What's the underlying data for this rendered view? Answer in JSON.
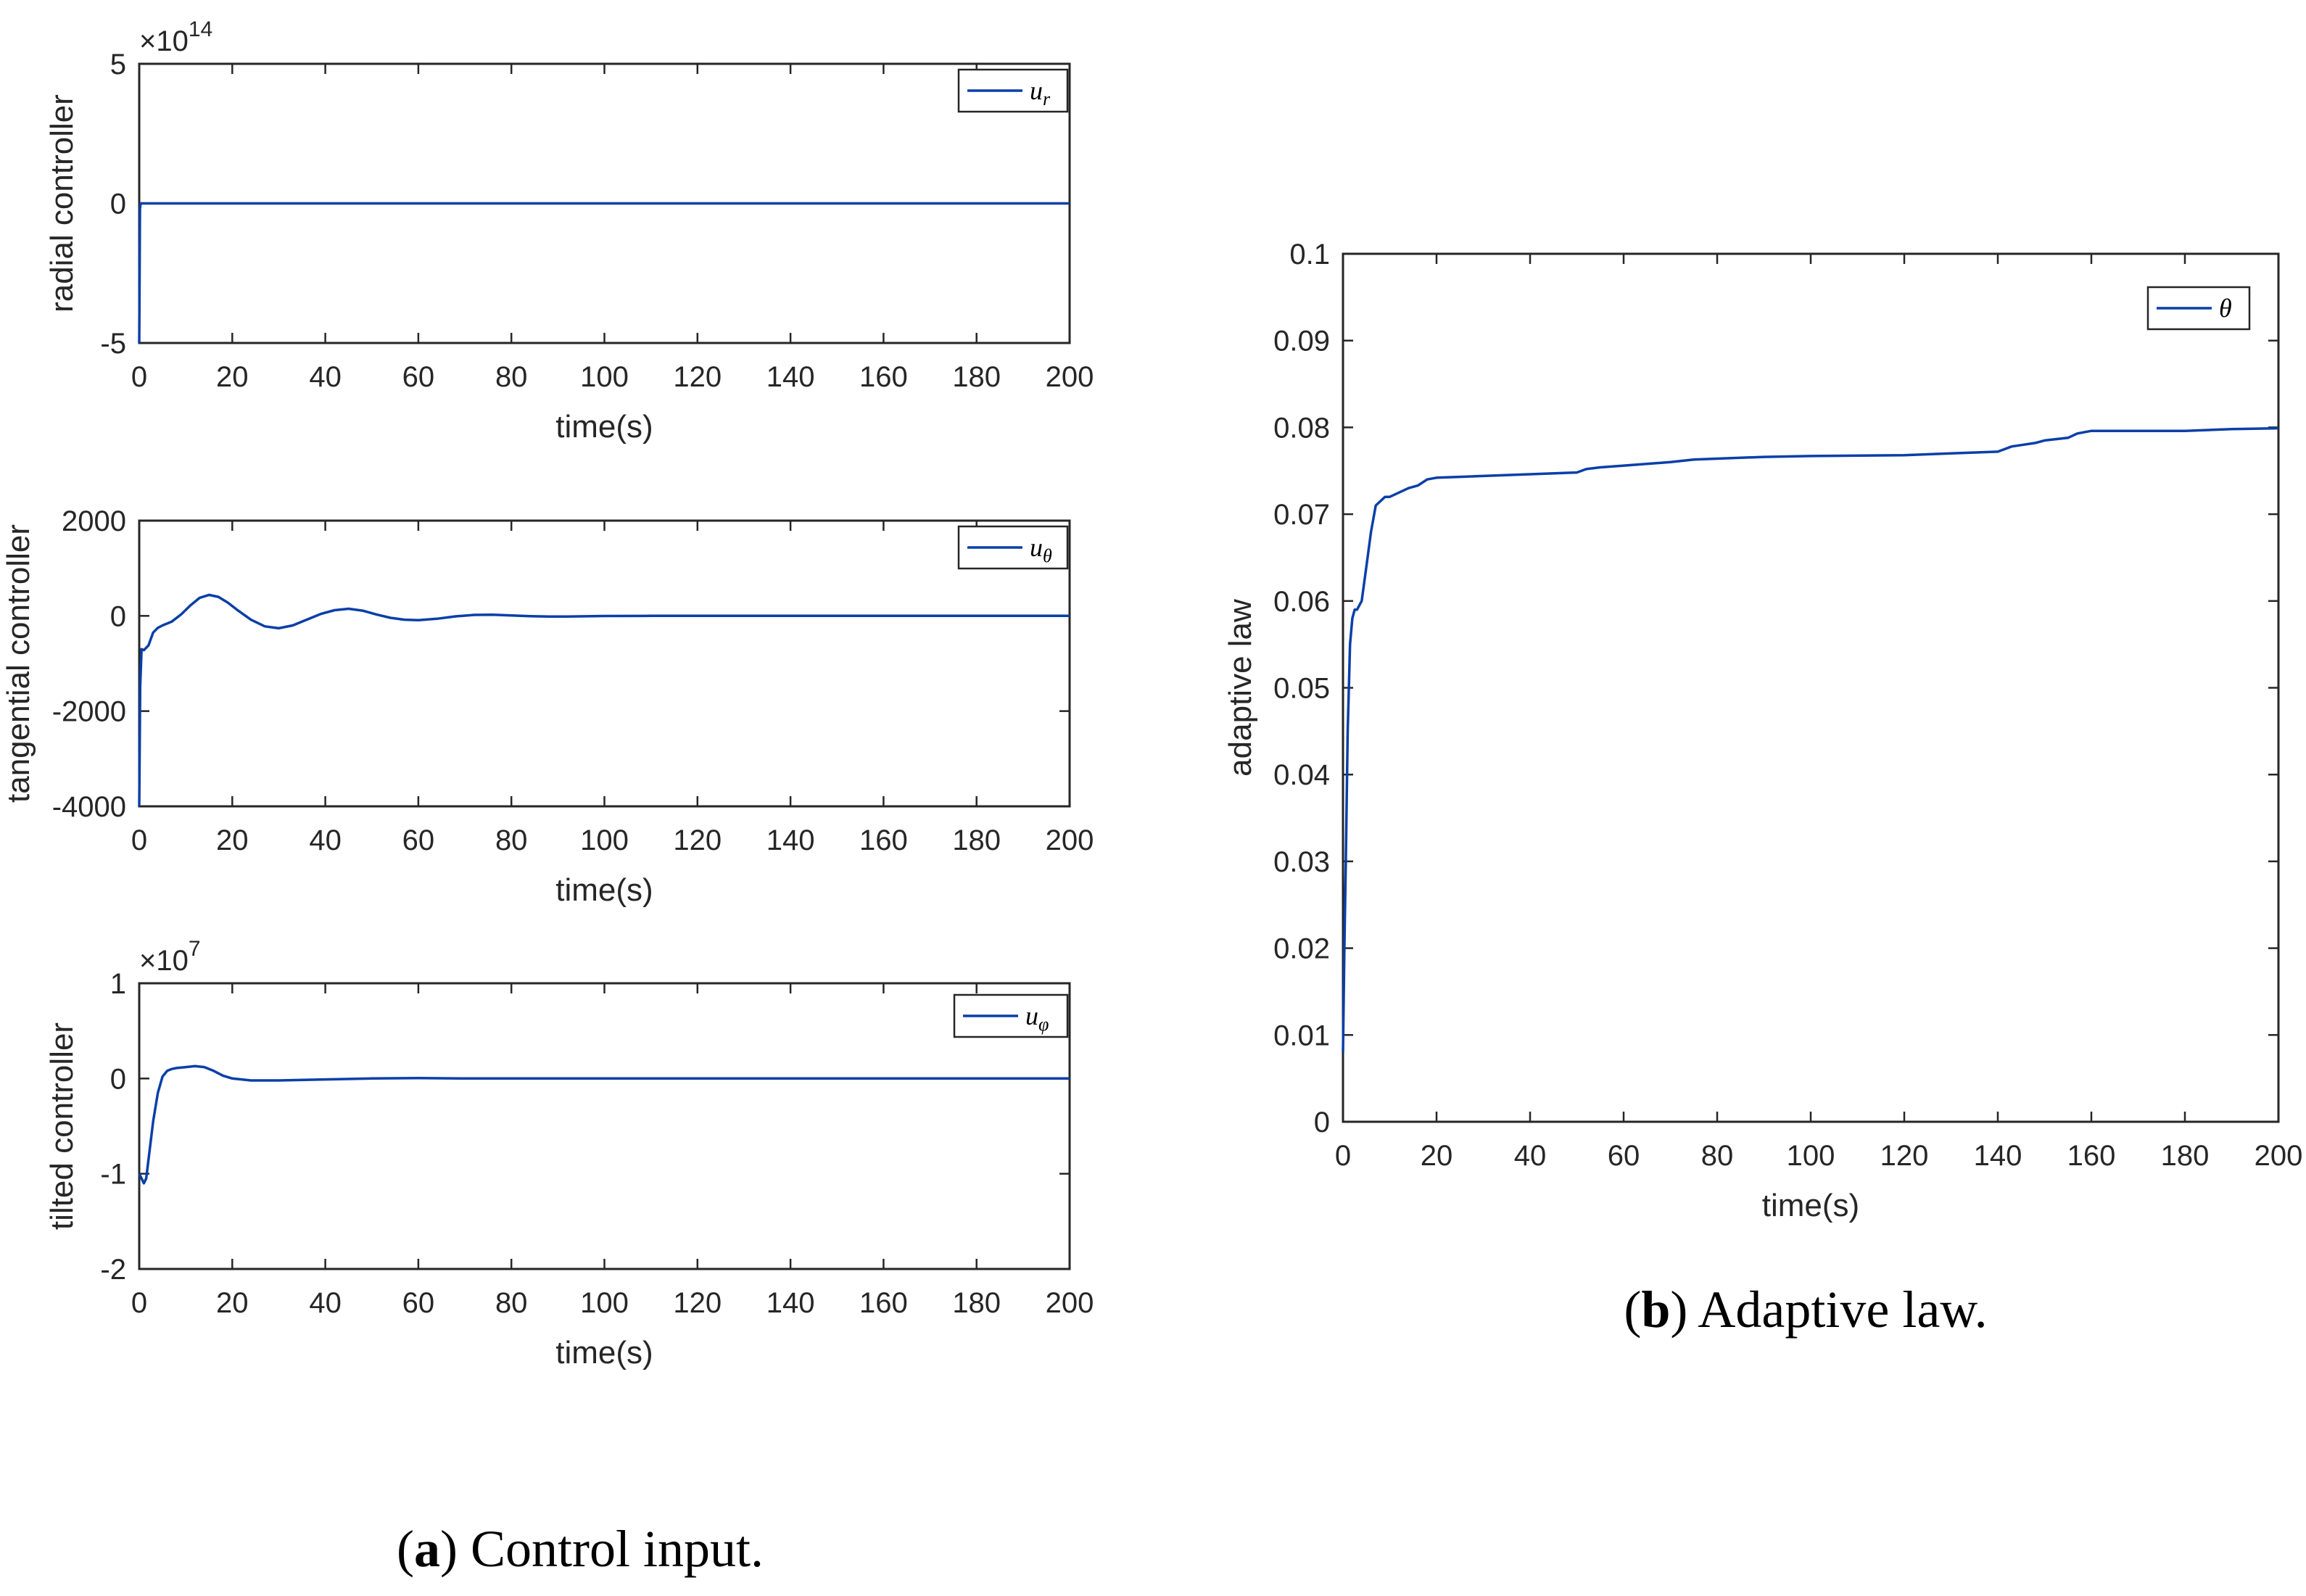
{
  "chart_data": [
    {
      "id": "radial",
      "type": "line",
      "ylabel": "radial controller",
      "xlabel": "time(s)",
      "exponent_base": "×10",
      "exponent_power": "14",
      "xlim": [
        0,
        200
      ],
      "ylim": [
        -5,
        5
      ],
      "xticks": [
        "0",
        "20",
        "40",
        "60",
        "80",
        "100",
        "120",
        "140",
        "160",
        "180",
        "200"
      ],
      "yticks": [
        "-5",
        "0",
        "5"
      ],
      "legend": "u",
      "legend_sub": "r",
      "color": "#0a3fa8",
      "series": [
        {
          "name": "u_r",
          "x": [
            0,
            0.15,
            0.3,
            200
          ],
          "y": [
            -5,
            -0.2,
            0,
            0
          ]
        }
      ]
    },
    {
      "id": "tangential",
      "type": "line",
      "ylabel": "tangential controller",
      "xlabel": "time(s)",
      "xlim": [
        0,
        200
      ],
      "ylim": [
        -4000,
        2000
      ],
      "xticks": [
        "0",
        "20",
        "40",
        "60",
        "80",
        "100",
        "120",
        "140",
        "160",
        "180",
        "200"
      ],
      "yticks": [
        "-4000",
        "-2000",
        "0",
        "2000"
      ],
      "legend": "u",
      "legend_sub": "θ",
      "color": "#0a3fa8",
      "series": [
        {
          "name": "u_theta",
          "x": [
            0,
            0.2,
            0.5,
            1,
            2,
            3,
            4,
            5,
            7,
            9,
            11,
            13,
            15,
            17,
            19,
            21,
            24,
            27,
            30,
            33,
            36,
            39,
            42,
            45,
            48,
            51,
            54,
            57,
            60,
            64,
            68,
            72,
            76,
            80,
            84,
            88,
            92,
            96,
            100,
            110,
            120,
            140,
            160,
            180,
            200
          ],
          "y": [
            -4000,
            -1500,
            -700,
            -720,
            -620,
            -350,
            -250,
            -200,
            -120,
            30,
            220,
            380,
            440,
            400,
            280,
            130,
            -80,
            -220,
            -260,
            -200,
            -80,
            40,
            120,
            150,
            110,
            30,
            -40,
            -80,
            -90,
            -60,
            -10,
            20,
            25,
            10,
            -5,
            -15,
            -15,
            -8,
            -3,
            0,
            0,
            0,
            0,
            0,
            0
          ]
        }
      ]
    },
    {
      "id": "tilted",
      "type": "line",
      "ylabel": "tilted controller",
      "xlabel": "time(s)",
      "exponent_base": "×10",
      "exponent_power": "7",
      "xlim": [
        0,
        200
      ],
      "ylim": [
        -2,
        1
      ],
      "xticks": [
        "0",
        "20",
        "40",
        "60",
        "80",
        "100",
        "120",
        "140",
        "160",
        "180",
        "200"
      ],
      "yticks": [
        "-2",
        "-1",
        "0",
        "1"
      ],
      "legend": "u",
      "legend_sub": "φ",
      "color": "#0a3fa8",
      "series": [
        {
          "name": "u_phi",
          "x": [
            0,
            0.5,
            1,
            1.5,
            2,
            3,
            4,
            5,
            6,
            7,
            8,
            10,
            12,
            14,
            16,
            18,
            20,
            24,
            30,
            40,
            50,
            60,
            70,
            80,
            100,
            200
          ],
          "y": [
            -1.0,
            -1.05,
            -1.1,
            -1.05,
            -0.85,
            -0.45,
            -0.15,
            0.02,
            0.08,
            0.1,
            0.11,
            0.12,
            0.13,
            0.12,
            0.08,
            0.03,
            0.0,
            -0.02,
            -0.02,
            -0.01,
            0.0,
            0.005,
            0.0,
            0.0,
            0.0,
            0.0
          ]
        }
      ]
    },
    {
      "id": "adaptive",
      "type": "line",
      "ylabel": "adaptive law",
      "xlabel": "time(s)",
      "xlim": [
        0,
        200
      ],
      "ylim": [
        0,
        0.1
      ],
      "xticks": [
        "0",
        "20",
        "40",
        "60",
        "80",
        "100",
        "120",
        "140",
        "160",
        "180",
        "200"
      ],
      "yticks": [
        "0",
        "0.01",
        "0.02",
        "0.03",
        "0.04",
        "0.05",
        "0.06",
        "0.07",
        "0.08",
        "0.09",
        "0.1"
      ],
      "legend": "θ",
      "legend_sub": "",
      "color": "#0a3fa8",
      "series": [
        {
          "name": "theta",
          "x": [
            0,
            0.3,
            0.6,
            1,
            1.5,
            2,
            2.5,
            3,
            4,
            5,
            6,
            7,
            8,
            9,
            10,
            12,
            14,
            16,
            18,
            20,
            25,
            30,
            40,
            50,
            52,
            55,
            60,
            70,
            75,
            80,
            90,
            100,
            120,
            130,
            140,
            143,
            148,
            150,
            155,
            157,
            160,
            170,
            180,
            190,
            200
          ],
          "y": [
            0.008,
            0.02,
            0.03,
            0.045,
            0.055,
            0.058,
            0.059,
            0.059,
            0.06,
            0.064,
            0.068,
            0.071,
            0.0715,
            0.072,
            0.072,
            0.0725,
            0.073,
            0.0733,
            0.074,
            0.0742,
            0.0743,
            0.0744,
            0.0746,
            0.0748,
            0.0752,
            0.0754,
            0.0756,
            0.076,
            0.0763,
            0.0764,
            0.0766,
            0.0767,
            0.0768,
            0.077,
            0.0772,
            0.0778,
            0.0782,
            0.0785,
            0.0788,
            0.0793,
            0.0796,
            0.0796,
            0.0796,
            0.0798,
            0.0799
          ]
        }
      ]
    }
  ],
  "captions": {
    "a_letter": "a",
    "a_text": " Control input.",
    "b_letter": "b",
    "b_text": " Adaptive law."
  }
}
